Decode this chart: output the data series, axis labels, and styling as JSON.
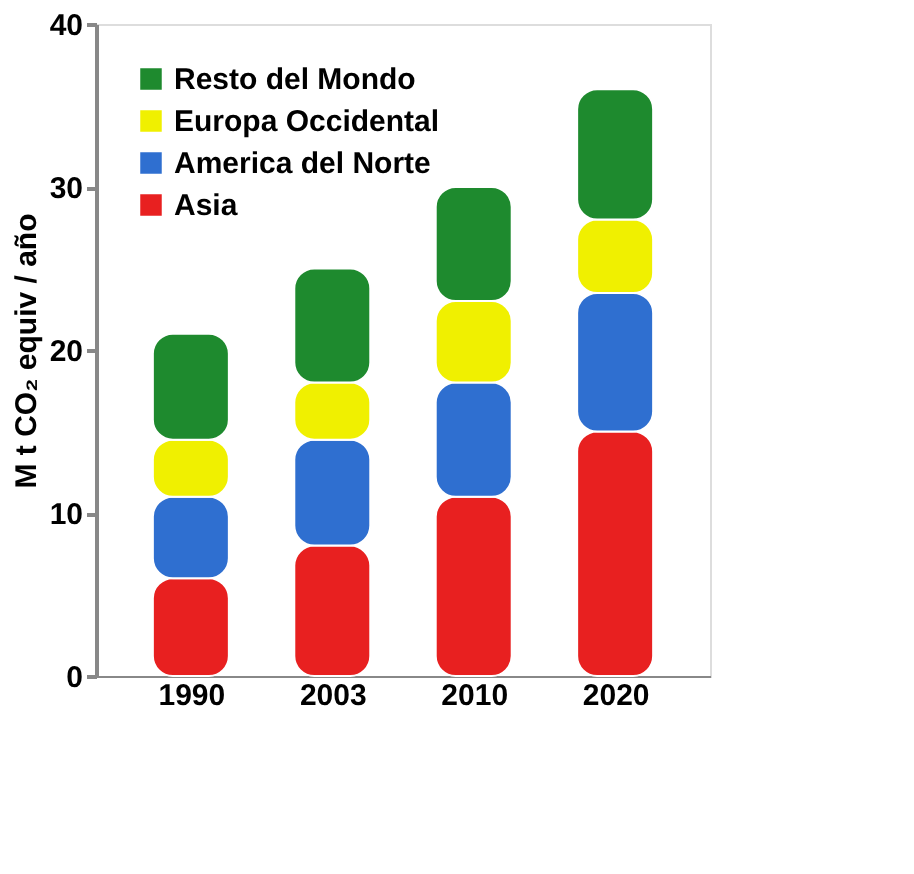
{
  "chart_data": {
    "type": "bar",
    "stacked": true,
    "ylabel": "M t CO₂ equiv / año",
    "categories": [
      "1990",
      "2003",
      "2010",
      "2020"
    ],
    "series": [
      {
        "name": "Asia",
        "color": "#e82020",
        "values": [
          6,
          8,
          11,
          15
        ]
      },
      {
        "name": "America del Norte",
        "color": "#2f6fd0",
        "values": [
          5,
          6.5,
          7,
          8.5
        ]
      },
      {
        "name": "Europa Occidental",
        "color": "#f0f000",
        "values": [
          3.5,
          3.5,
          5,
          4.5
        ]
      },
      {
        "name": "Resto del Mondo",
        "color": "#1e8a2e",
        "values": [
          6.5,
          7,
          7,
          8
        ]
      }
    ],
    "ylim": [
      0,
      40
    ],
    "yticks": [
      0,
      10,
      20,
      30,
      40
    ],
    "grid": false,
    "legend": "top left"
  }
}
